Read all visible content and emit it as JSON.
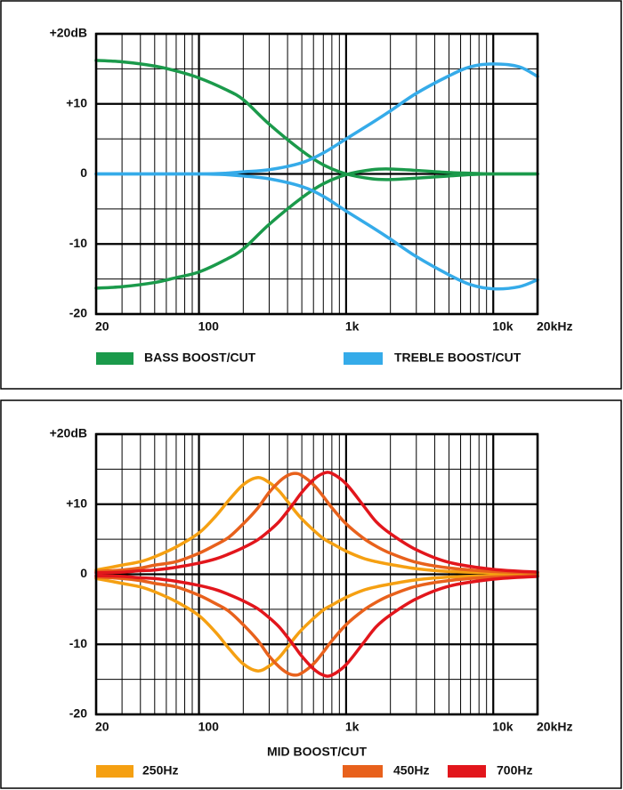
{
  "chart_data": [
    {
      "type": "line",
      "xscale": "log",
      "x": [
        20,
        30,
        50,
        70,
        100,
        150,
        200,
        300,
        500,
        700,
        1000,
        1500,
        2000,
        3000,
        5000,
        7000,
        10000,
        15000,
        20000
      ],
      "series": [
        {
          "color": "#1b9a4b",
          "values": [
            16.2,
            16.0,
            15.4,
            14.7,
            13.7,
            12.1,
            10.6,
            7.1,
            3.3,
            1.3,
            0,
            -0.7,
            -0.8,
            -0.6,
            -0.3,
            -0.1,
            0,
            0,
            0
          ]
        },
        {
          "color": "#1b9a4b",
          "values": [
            -16.3,
            -16.1,
            -15.5,
            -14.8,
            -14.0,
            -12.3,
            -10.7,
            -7.2,
            -3.4,
            -1.4,
            -0.1,
            0.6,
            0.7,
            0.5,
            0.2,
            0.1,
            0,
            0,
            0
          ]
        },
        {
          "color": "#35abe9",
          "values": [
            0,
            0,
            0,
            0,
            0,
            0.1,
            0.3,
            0.6,
            1.6,
            3.0,
            5.0,
            7.3,
            9.0,
            11.5,
            14.0,
            15.3,
            15.7,
            15.3,
            13.9
          ]
        },
        {
          "color": "#35abe9",
          "values": [
            0,
            0,
            0,
            0,
            0,
            -0.1,
            -0.3,
            -0.7,
            -1.8,
            -3.2,
            -5.3,
            -7.6,
            -9.3,
            -11.8,
            -14.4,
            -15.8,
            -16.4,
            -16.1,
            -15.1
          ]
        }
      ],
      "legend": [
        {
          "name": "BASS BOOST/CUT",
          "color": "#1b9a4b"
        },
        {
          "name": "TREBLE BOOST/CUT",
          "color": "#35abe9"
        }
      ],
      "xlim": [
        20,
        20000
      ],
      "ylim": [
        -20,
        20
      ],
      "xticks": [
        20,
        100,
        {
          "value": 1000,
          "label": "1k"
        },
        {
          "value": 10000,
          "label": "10k"
        },
        {
          "value": 20000,
          "label": "20kHz"
        }
      ],
      "x_minor_ticks": [
        30,
        40,
        50,
        60,
        70,
        80,
        90,
        200,
        300,
        400,
        500,
        600,
        700,
        800,
        900,
        2000,
        3000,
        4000,
        5000,
        6000,
        7000,
        8000,
        9000
      ],
      "yticks": [
        {
          "value": 20,
          "label": "+20dB"
        },
        {
          "value": 10,
          "label": "+10"
        },
        0,
        -10,
        -20
      ],
      "y_minor_ticks": [
        15,
        5,
        -5,
        -15
      ],
      "grid": true
    },
    {
      "type": "line",
      "xscale": "log",
      "xlabel": "MID BOOST/CUT",
      "x": [
        20,
        30,
        40,
        50,
        70,
        100,
        130,
        160,
        200,
        250,
        300,
        350,
        400,
        450,
        500,
        600,
        700,
        800,
        1000,
        1300,
        1600,
        2000,
        3000,
        5000,
        10000,
        20000
      ],
      "series": [
        {
          "color": "#f5a012",
          "values": [
            0.6,
            1.3,
            1.8,
            2.5,
            3.9,
            5.9,
            8.3,
            10.6,
            12.8,
            13.8,
            13.1,
            11.9,
            10.4,
            9.0,
            7.9,
            6.3,
            5.1,
            4.4,
            3.3,
            2.3,
            1.8,
            1.4,
            0.8,
            0.4,
            0.2,
            0
          ]
        },
        {
          "color": "#f5a012",
          "values": [
            -0.6,
            -1.3,
            -1.8,
            -2.5,
            -3.9,
            -5.9,
            -8.3,
            -10.6,
            -12.8,
            -13.8,
            -13.1,
            -11.9,
            -10.4,
            -9.0,
            -7.9,
            -6.3,
            -5.1,
            -4.4,
            -3.3,
            -2.3,
            -1.8,
            -1.4,
            -0.8,
            -0.4,
            -0.2,
            0
          ]
        },
        {
          "color": "#e8611c",
          "values": [
            0.4,
            0.6,
            0.9,
            1.3,
            1.8,
            3.0,
            4.2,
            5.3,
            7.2,
            9.4,
            11.7,
            13.2,
            14.1,
            14.4,
            14.1,
            12.8,
            11.1,
            9.5,
            7.2,
            5.2,
            4.0,
            3.0,
            1.7,
            0.9,
            0.4,
            0.2
          ]
        },
        {
          "color": "#e8611c",
          "values": [
            -0.4,
            -0.6,
            -0.9,
            -1.3,
            -1.8,
            -3.0,
            -4.2,
            -5.3,
            -7.2,
            -9.4,
            -11.7,
            -13.2,
            -14.1,
            -14.4,
            -14.1,
            -12.8,
            -11.1,
            -9.5,
            -7.2,
            -5.2,
            -4.0,
            -3.0,
            -1.7,
            -0.9,
            -0.4,
            -0.2
          ]
        },
        {
          "color": "#e2161c",
          "values": [
            0.2,
            0.3,
            0.5,
            0.6,
            1.0,
            1.6,
            2.2,
            2.9,
            3.8,
            4.9,
            6.2,
            7.5,
            9.0,
            10.4,
            11.7,
            13.5,
            14.4,
            14.4,
            12.9,
            9.9,
            7.5,
            5.8,
            3.5,
            1.7,
            0.7,
            0.3
          ]
        },
        {
          "color": "#e2161c",
          "values": [
            -0.2,
            -0.3,
            -0.5,
            -0.6,
            -1.0,
            -1.6,
            -2.2,
            -2.9,
            -3.8,
            -4.9,
            -6.2,
            -7.5,
            -9.0,
            -10.4,
            -11.7,
            -13.5,
            -14.4,
            -14.4,
            -12.9,
            -9.9,
            -7.5,
            -5.8,
            -3.5,
            -1.7,
            -0.7,
            -0.3
          ]
        }
      ],
      "legend": [
        {
          "name": "250Hz",
          "color": "#f5a012"
        },
        {
          "name": "450Hz",
          "color": "#e8611c"
        },
        {
          "name": "700Hz",
          "color": "#e2161c"
        }
      ],
      "xlim": [
        20,
        20000
      ],
      "ylim": [
        -20,
        20
      ],
      "xticks": [
        20,
        100,
        {
          "value": 1000,
          "label": "1k"
        },
        {
          "value": 10000,
          "label": "10k"
        },
        {
          "value": 20000,
          "label": "20kHz"
        }
      ],
      "x_minor_ticks": [
        30,
        40,
        50,
        60,
        70,
        80,
        90,
        200,
        300,
        400,
        500,
        600,
        700,
        800,
        900,
        2000,
        3000,
        4000,
        5000,
        6000,
        7000,
        8000,
        9000
      ],
      "yticks": [
        {
          "value": 20,
          "label": "+20dB"
        },
        {
          "value": 10,
          "label": "+10"
        },
        0,
        -10,
        -20
      ],
      "y_minor_ticks": [
        15,
        5,
        -5,
        -15
      ],
      "grid": true
    }
  ]
}
